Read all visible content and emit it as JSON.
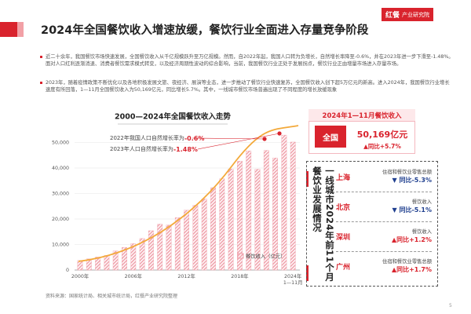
{
  "header": {
    "title": "2024年全国餐饮收入增速放缓，餐饮行业全面进入存量竞争阶段",
    "logo": "红餐",
    "logo_sub": "产业研究院"
  },
  "bullets": [
    "近二十余年，我国餐饮市场快速发展，全国餐饮收入从千亿规模跃升至万亿规模。然而，自2022年起，我国人口转为负增长，自然增长率降至-0.6%，并在2023年进一步下滑至-1.48%。面对人口红利逐渐消退、消费者餐饮需求模式转变，以及经济周期性波动的综合影响，当前，我国餐饮行业正处于发展拐点，餐饮行业正由增量市场进入存量市场。",
    "2023年，随着疫情政策不断优化以及各地积极发展文旅、夜经济、展演等业态，进一步推动了餐饮行业快速复苏，全国餐饮收入创下超5万亿元的新高。进入2024年，我国餐饮行业增长速度有所回落，1—11月全国餐饮收入为50,169亿元，同比增长5.7%。其中，一线城市餐饮市场普遍出现了不同程度的增长放缓现象"
  ],
  "chart_data": {
    "type": "bar",
    "title": "2000—2024年全国餐饮收入走势",
    "categories": [
      "2000年",
      null,
      null,
      null,
      null,
      null,
      "2006年",
      null,
      null,
      null,
      null,
      null,
      "2012年",
      null,
      null,
      null,
      null,
      null,
      "2018年",
      null,
      null,
      null,
      null,
      null,
      "2024年\n1—11月"
    ],
    "values": [
      3753,
      4369,
      5092,
      5715,
      7486,
      8887,
      10346,
      12352,
      15404,
      17998,
      17648,
      20543,
      23448,
      25392,
      27860,
      32310,
      35799,
      39644,
      42716,
      46721,
      39527,
      46895,
      43941,
      52890,
      50169
    ],
    "color": "#f0a3ad",
    "trend_color": "#f3a93a",
    "ylim": [
      0,
      55000
    ],
    "yticks": [
      0,
      {
        "value": 10000,
        "label": "10,000"
      },
      {
        "value": 20000,
        "label": "20,000"
      },
      {
        "value": 30000,
        "label": "30,000"
      },
      {
        "value": 40000,
        "label": "40,000"
      },
      {
        "value": 50000,
        "label": "50,000"
      }
    ],
    "legend": "餐饮收入（亿元）",
    "annotations": [
      {
        "text": "2022年我国人口自然增长率为",
        "highlight": "-0.6%"
      },
      {
        "text": "2023年人口自然增长率为",
        "highlight": "-1.48%"
      }
    ]
  },
  "panel": {
    "head": "2024年1—11月餐饮收入",
    "national": {
      "label": "全国",
      "value": "50,169亿元",
      "change": "▲同比+5.7%"
    },
    "cities_title": "一线城市2024年前11个月餐饮业发展情况",
    "cities": [
      {
        "city": "上海",
        "metric": "住宿和餐饮业零售总额",
        "change": "▼ 同比-5.3%"
      },
      {
        "city": "北京",
        "metric": "餐饮收入",
        "change": "▼ 同比-5.1%"
      },
      {
        "city": "深圳",
        "metric": "餐饮收入",
        "change": "▲同比+1.2%"
      },
      {
        "city": "广州",
        "metric": "住宿和餐饮业零售总额",
        "change": "▲同比+1.7%"
      }
    ]
  },
  "footer": {
    "source": "资料来源：国家统计局、相关城市统计局，红餐产业研究院整理",
    "page": "5"
  }
}
